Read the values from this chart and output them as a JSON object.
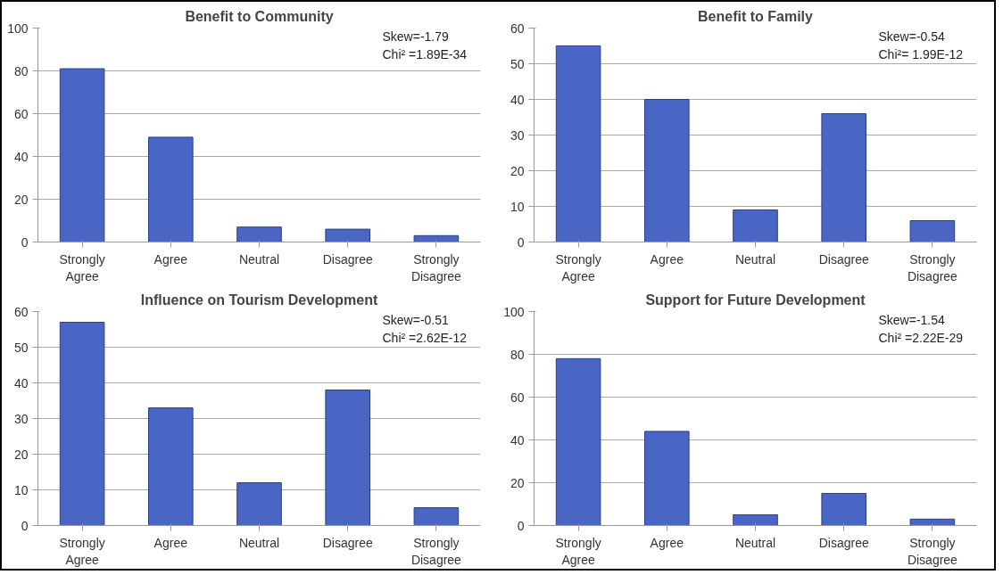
{
  "chart_data": [
    {
      "type": "bar",
      "title": "Benefit to Community",
      "categories": [
        "Strongly Agree",
        "Agree",
        "Neutral",
        "Disagree",
        "Strongly Disagree"
      ],
      "values": [
        81,
        49,
        7,
        6,
        3
      ],
      "color": "#4a66c4",
      "ylim": [
        0,
        100
      ],
      "yticks": [
        0,
        20,
        40,
        60,
        80,
        100
      ],
      "grid": "y",
      "annotations": [
        "Skew=-1.79",
        "Chi² =1.89E-34"
      ]
    },
    {
      "type": "bar",
      "title": "Benefit to Family",
      "categories": [
        "Strongly Agree",
        "Agree",
        "Neutral",
        "Disagree",
        "Strongly Disagree"
      ],
      "values": [
        55,
        40,
        9,
        36,
        6
      ],
      "color": "#4a66c4",
      "ylim": [
        0,
        60
      ],
      "yticks": [
        0,
        10,
        20,
        30,
        40,
        50,
        60
      ],
      "grid": "y",
      "annotations": [
        "Skew=-0.54",
        "Chi²= 1.99E-12"
      ]
    },
    {
      "type": "bar",
      "title": "Influence on Tourism Development",
      "categories": [
        "Strongly Agree",
        "Agree",
        "Neutral",
        "Disagree",
        "Strongly Disagree"
      ],
      "values": [
        57,
        33,
        12,
        38,
        5
      ],
      "color": "#4a66c4",
      "ylim": [
        0,
        60
      ],
      "yticks": [
        0,
        10,
        20,
        30,
        40,
        50,
        60
      ],
      "grid": "y",
      "annotations": [
        "Skew=-0.51",
        "Chi² =2.62E-12"
      ]
    },
    {
      "type": "bar",
      "title": "Support for Future Development",
      "categories": [
        "Strongly Agree",
        "Agree",
        "Neutral",
        "Disagree",
        "Strongly Disagree"
      ],
      "values": [
        78,
        44,
        5,
        15,
        3
      ],
      "color": "#4a66c4",
      "ylim": [
        0,
        100
      ],
      "yticks": [
        0,
        20,
        40,
        60,
        80,
        100
      ],
      "grid": "y",
      "annotations": [
        "Skew=-1.54",
        "Chi² =2.22E-29"
      ]
    }
  ]
}
